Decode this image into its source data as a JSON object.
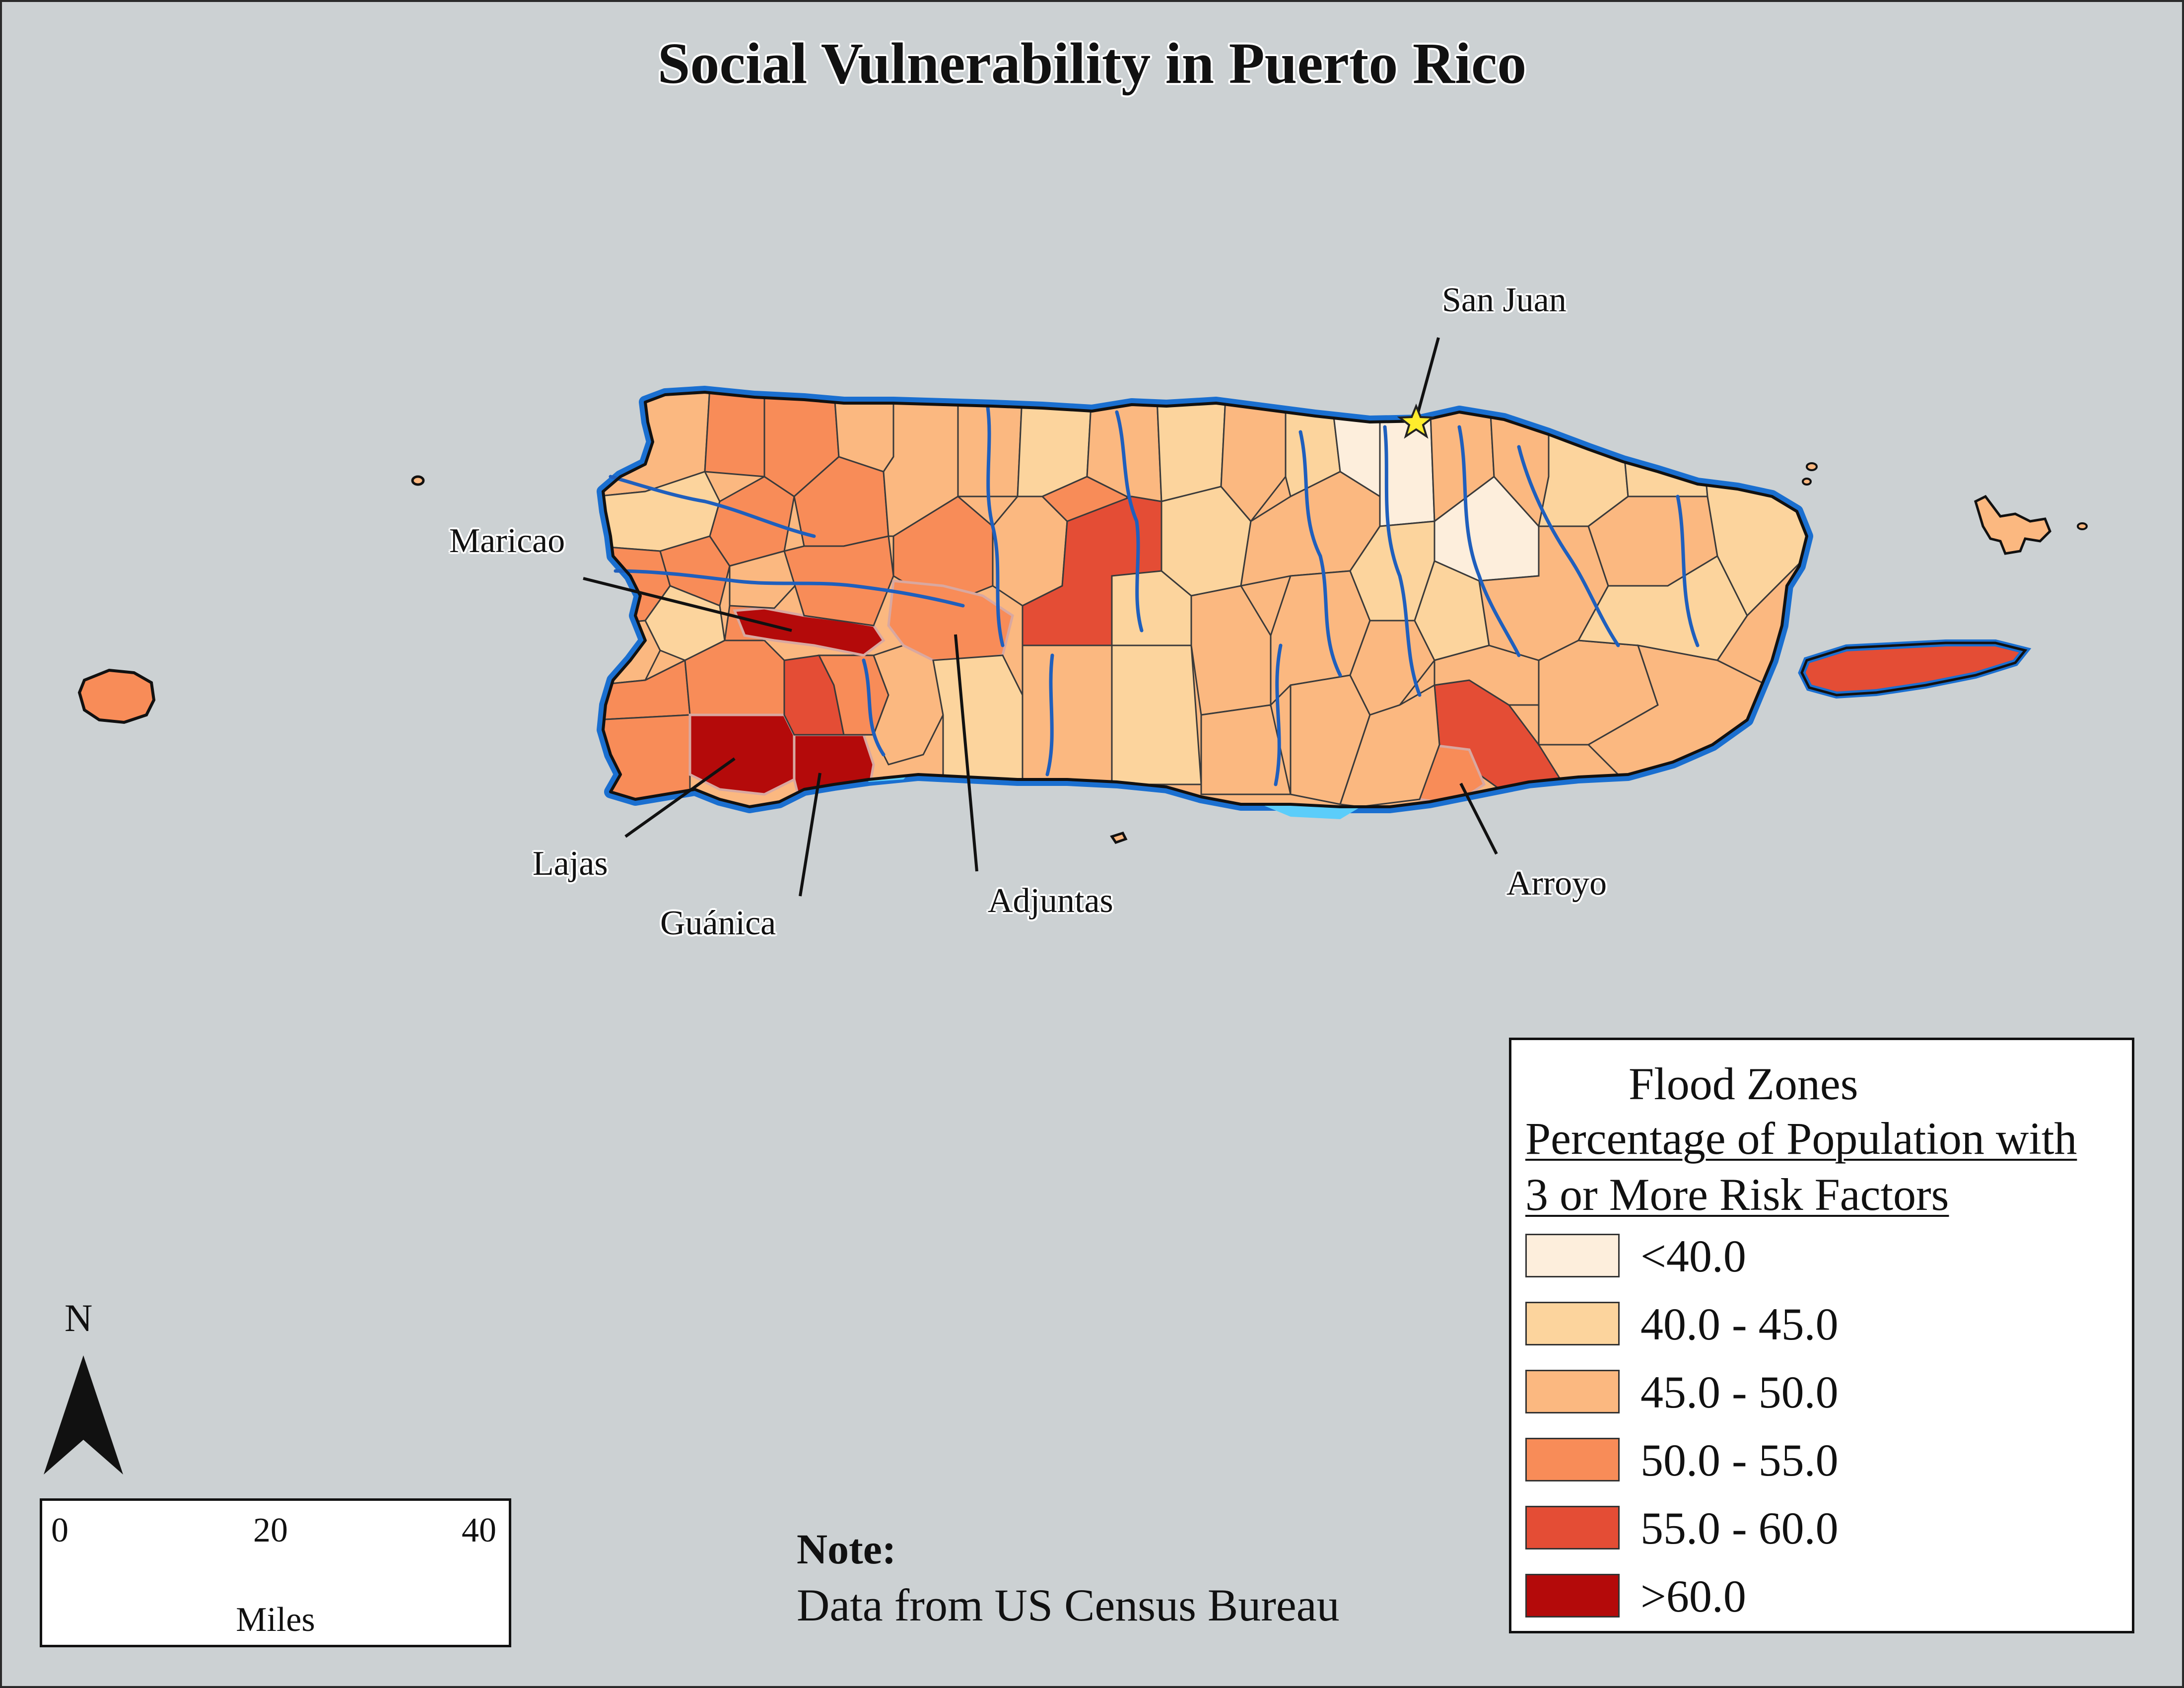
{
  "title": "Social Vulnerability in Puerto Rico",
  "colors": {
    "water": "#ccd1d3",
    "flood": "#5bcdfa",
    "river": "#1f5fbd",
    "class_lt40": "#fdeedc",
    "class_40_45": "#fcd49d",
    "class_45_50": "#fbb880",
    "class_50_55": "#f88c58",
    "class_55_60": "#e44d35",
    "class_gt60": "#b40a0a"
  },
  "labels": {
    "san_juan": "San Juan",
    "maricao": "Maricao",
    "lajas": "Lajas",
    "guanica": "Guánica",
    "adjuntas": "Adjuntas",
    "arroyo": "Arroyo"
  },
  "legend": {
    "flood_label": "Flood Zones",
    "heading_line1": "Percentage of Population with",
    "heading_line2": "3 or More Risk Factors",
    "classes": [
      {
        "label": "<40.0",
        "color": "#fdeedc"
      },
      {
        "label": "40.0 - 45.0",
        "color": "#fcd49d"
      },
      {
        "label": "45.0 - 50.0",
        "color": "#fbb880"
      },
      {
        "label": "50.0 - 55.0",
        "color": "#f88c58"
      },
      {
        "label": "55.0 - 60.0",
        "color": "#e44d35"
      },
      {
        "label": ">60.0",
        "color": "#b40a0a"
      }
    ]
  },
  "north_arrow": {
    "label": "N"
  },
  "scale_bar": {
    "min": "0",
    "mid": "20",
    "max": "40",
    "unit": "Miles"
  },
  "note": {
    "title": "Note:",
    "text": "Data from US Census Bureau"
  }
}
